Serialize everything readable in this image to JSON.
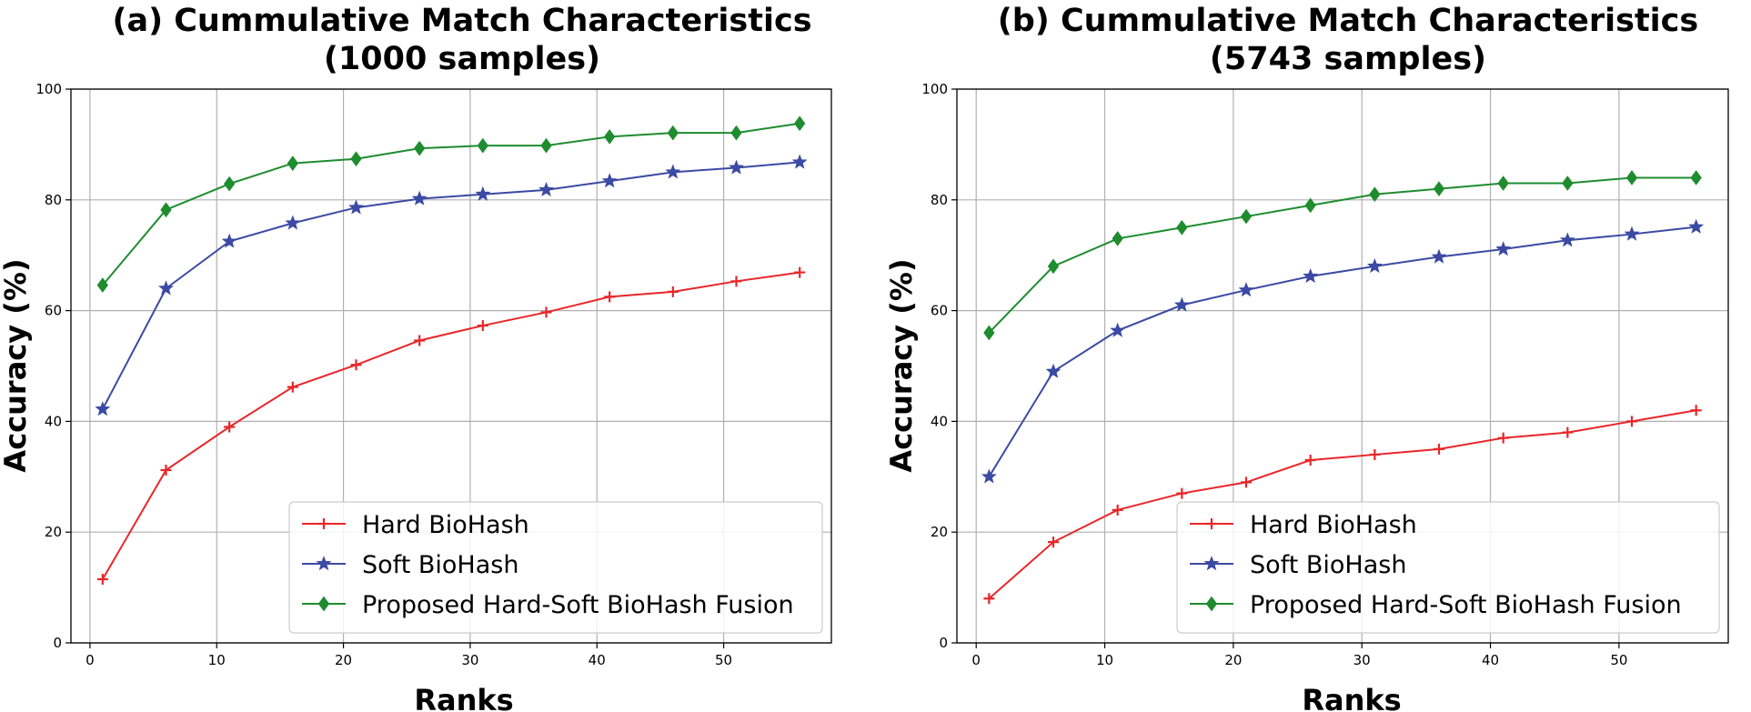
{
  "chart_data": [
    {
      "type": "line",
      "title_line1": "(a) Cummulative Match Characteristics",
      "title_line2": "(1000 samples)",
      "xlabel": "Ranks",
      "ylabel": "Accuracy (%)",
      "xlim": [
        -1.5,
        58.5
      ],
      "ylim": [
        0,
        100
      ],
      "xticks": [
        0,
        10,
        20,
        30,
        40,
        50
      ],
      "yticks": [
        0,
        20,
        40,
        60,
        80,
        100
      ],
      "grid": true,
      "legend_position": "lower-right",
      "x": [
        1,
        6,
        11,
        16,
        21,
        26,
        31,
        36,
        41,
        46,
        51,
        56
      ],
      "series": [
        {
          "name": "Hard BioHash",
          "color": "#e8262a",
          "marker": "plus",
          "values": [
            11.5,
            31.2,
            39.0,
            46.2,
            50.2,
            54.6,
            57.3,
            59.7,
            62.5,
            63.4,
            65.3,
            66.9
          ]
        },
        {
          "name": "Soft BioHash",
          "color": "#3b4aa3",
          "marker": "star",
          "values": [
            42.2,
            64.0,
            72.5,
            75.8,
            78.6,
            80.2,
            81.0,
            81.8,
            83.4,
            85.0,
            85.8,
            86.8
          ]
        },
        {
          "name": "Proposed Hard-Soft BioHash Fusion",
          "color": "#1e8c2f",
          "marker": "diamond",
          "values": [
            64.6,
            78.2,
            82.9,
            86.6,
            87.4,
            89.3,
            89.8,
            89.8,
            91.4,
            92.1,
            92.1,
            93.8
          ]
        }
      ]
    },
    {
      "type": "line",
      "title_line1": "(b) Cummulative Match Characteristics",
      "title_line2": "(5743 samples)",
      "xlabel": "Ranks",
      "ylabel": "Accuracy (%)",
      "xlim": [
        -1.5,
        58.5
      ],
      "ylim": [
        0,
        100
      ],
      "xticks": [
        0,
        10,
        20,
        30,
        40,
        50
      ],
      "yticks": [
        0,
        20,
        40,
        60,
        80,
        100
      ],
      "grid": true,
      "legend_position": "lower-right",
      "x": [
        1,
        6,
        11,
        16,
        21,
        26,
        31,
        36,
        41,
        46,
        51,
        56
      ],
      "series": [
        {
          "name": "Hard BioHash",
          "color": "#e8262a",
          "marker": "plus",
          "values": [
            8.0,
            18.2,
            24.0,
            27.0,
            29.0,
            33.0,
            34.0,
            35.0,
            37.0,
            38.0,
            40.0,
            42.0
          ]
        },
        {
          "name": "Soft BioHash",
          "color": "#3b4aa3",
          "marker": "star",
          "values": [
            30.0,
            49.0,
            56.4,
            61.0,
            63.7,
            66.2,
            68.0,
            69.7,
            71.1,
            72.7,
            73.8,
            75.1
          ]
        },
        {
          "name": "Proposed Hard-Soft BioHash Fusion",
          "color": "#1e8c2f",
          "marker": "diamond",
          "values": [
            56.0,
            68.0,
            73.0,
            75.0,
            77.0,
            79.0,
            81.0,
            82.0,
            83.0,
            83.0,
            84.0,
            84.0
          ]
        }
      ]
    }
  ]
}
